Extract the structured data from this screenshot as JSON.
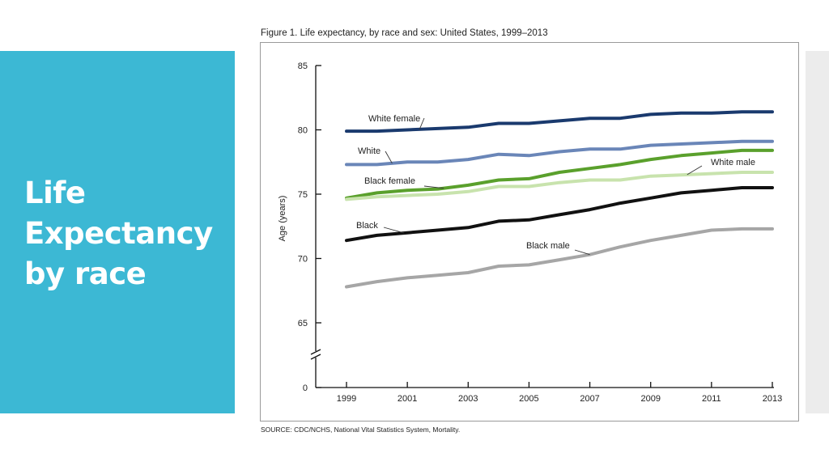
{
  "slide": {
    "title_lines": [
      "Life",
      "Expectancy",
      "by race"
    ]
  },
  "figure": {
    "title": "Figure 1. Life expectancy, by race and sex: United States, 1999–2013",
    "source": "SOURCE: CDC/NCHS, National Vital Statistics System, Mortality."
  },
  "colors": {
    "panel": "#3cb8d4",
    "strip": "#ececec"
  },
  "chart_data": {
    "type": "line",
    "title": "Figure 1. Life expectancy, by race and sex: United States, 1999–2013",
    "xlabel": "",
    "ylabel": "Age (years)",
    "x": [
      1999,
      2000,
      2001,
      2002,
      2003,
      2004,
      2005,
      2006,
      2007,
      2008,
      2009,
      2010,
      2011,
      2012,
      2013
    ],
    "x_ticks": [
      1999,
      2001,
      2003,
      2005,
      2007,
      2009,
      2011,
      2013
    ],
    "y_ticks": [
      0,
      65,
      70,
      75,
      80,
      85
    ],
    "ylim": [
      65,
      85
    ],
    "y_axis_break": true,
    "grid": false,
    "legend": "direct labels",
    "series": [
      {
        "name": "White female",
        "color": "#1a3a6e",
        "values": [
          79.9,
          79.9,
          80.0,
          80.1,
          80.2,
          80.5,
          80.5,
          80.7,
          80.9,
          80.9,
          81.2,
          81.3,
          81.3,
          81.4,
          81.4
        ]
      },
      {
        "name": "White",
        "color": "#6a86b8",
        "values": [
          77.3,
          77.3,
          77.5,
          77.5,
          77.7,
          78.1,
          78.0,
          78.3,
          78.5,
          78.5,
          78.8,
          78.9,
          79.0,
          79.1,
          79.1
        ]
      },
      {
        "name": "Black female",
        "color": "#5aa02c",
        "values": [
          74.7,
          75.1,
          75.3,
          75.4,
          75.7,
          76.1,
          76.2,
          76.7,
          77.0,
          77.3,
          77.7,
          78.0,
          78.2,
          78.4,
          78.4
        ]
      },
      {
        "name": "White male",
        "color": "#c8e3ad",
        "values": [
          74.6,
          74.8,
          74.9,
          75.0,
          75.2,
          75.6,
          75.6,
          75.9,
          76.1,
          76.1,
          76.4,
          76.5,
          76.6,
          76.7,
          76.7
        ]
      },
      {
        "name": "Black",
        "color": "#111111",
        "values": [
          71.4,
          71.8,
          72.0,
          72.2,
          72.4,
          72.9,
          73.0,
          73.4,
          73.8,
          74.3,
          74.7,
          75.1,
          75.3,
          75.5,
          75.5
        ]
      },
      {
        "name": "Black male",
        "color": "#a6a6a6",
        "values": [
          67.8,
          68.2,
          68.5,
          68.7,
          68.9,
          69.4,
          69.5,
          69.9,
          70.3,
          70.9,
          71.4,
          71.8,
          72.2,
          72.3,
          72.3
        ]
      }
    ]
  }
}
